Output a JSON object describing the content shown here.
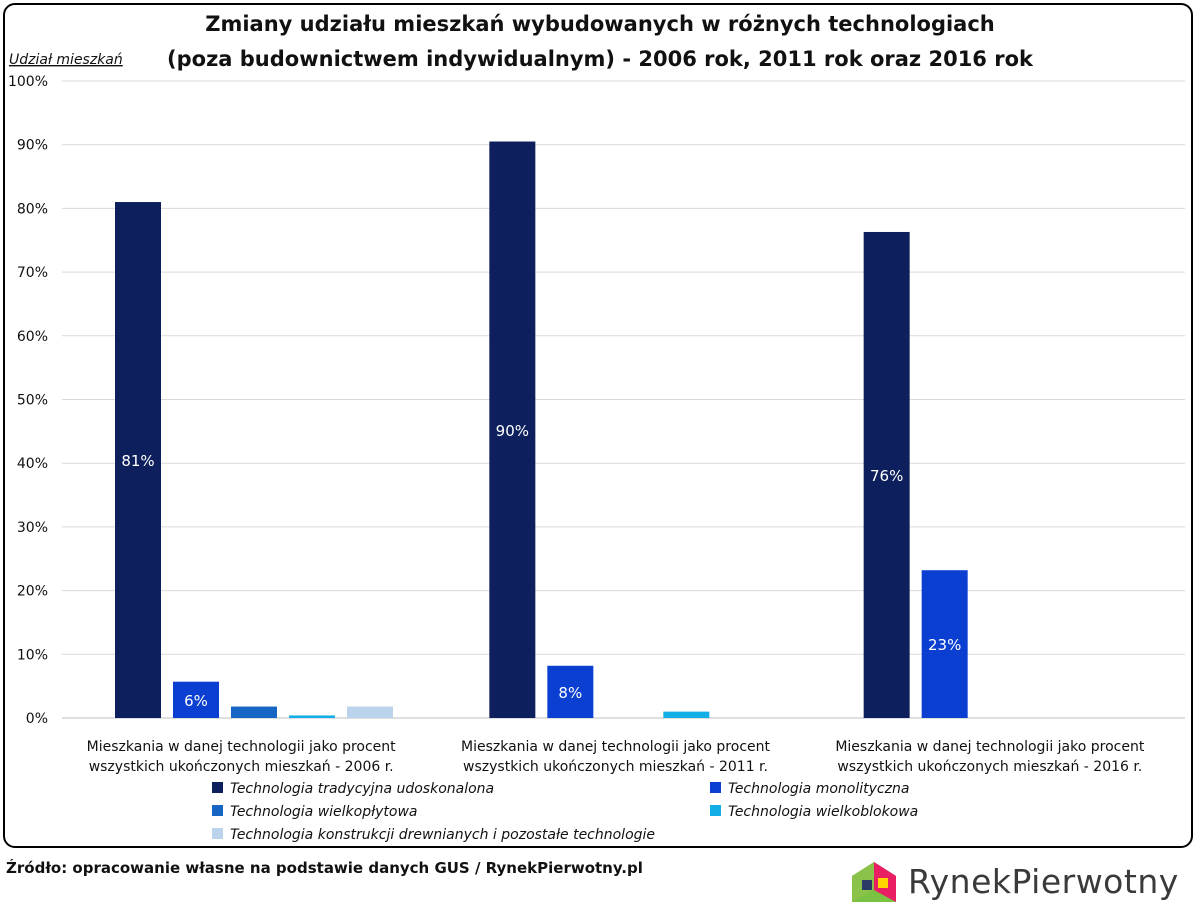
{
  "chart_data": {
    "type": "bar",
    "title_lines": [
      "Zmiany udziału mieszkań wybudowanych w różnych technologiach",
      "(poza budownictwem indywidualnym) - 2006 rok, 2011 rok oraz 2016 rok"
    ],
    "ylabel": "Udział mieszkań",
    "ylim": [
      0,
      100
    ],
    "yticks": [
      "0%",
      "10%",
      "20%",
      "30%",
      "40%",
      "50%",
      "60%",
      "70%",
      "80%",
      "90%",
      "100%"
    ],
    "categories": [
      [
        "Mieszkania w danej technologii jako procent",
        "wszystkich ukończonych mieszkań - 2006 r."
      ],
      [
        "Mieszkania w danej technologii jako procent",
        "wszystkich ukończonych mieszkań - 2011 r."
      ],
      [
        "Mieszkania w danej technologii jako procent",
        "wszystkich ukończonych mieszkań - 2016 r."
      ]
    ],
    "series": [
      {
        "name": "Technologia tradycyjna udoskonalona",
        "color": "#0d1f5c",
        "values": [
          81,
          90.5,
          76.3
        ],
        "labels": [
          "81%",
          "90%",
          "76%"
        ]
      },
      {
        "name": "Technologia monolityczna",
        "color": "#0a3fd1",
        "values": [
          5.7,
          8.2,
          23.2
        ],
        "labels": [
          "6%",
          "8%",
          "23%"
        ]
      },
      {
        "name": "Technologia wielkopłytowa",
        "color": "#1766c4",
        "values": [
          1.8,
          0,
          0
        ],
        "labels": [
          "",
          "",
          ""
        ]
      },
      {
        "name": "Technologia wielkoblokowa",
        "color": "#14aee6",
        "values": [
          0.4,
          1.0,
          0
        ],
        "labels": [
          "",
          "",
          ""
        ]
      },
      {
        "name": "Technologia konstrukcji drewnianych i pozostałe technologie",
        "color": "#bcd3ee",
        "values": [
          1.8,
          0,
          0
        ],
        "labels": [
          "",
          "",
          ""
        ]
      }
    ],
    "grid": true,
    "legend_position": "bottom"
  },
  "source_text": "Źródło: opracowanie własne na podstawie danych GUS / RynekPierwotny.pl",
  "logo_text": "RynekPierwotny"
}
